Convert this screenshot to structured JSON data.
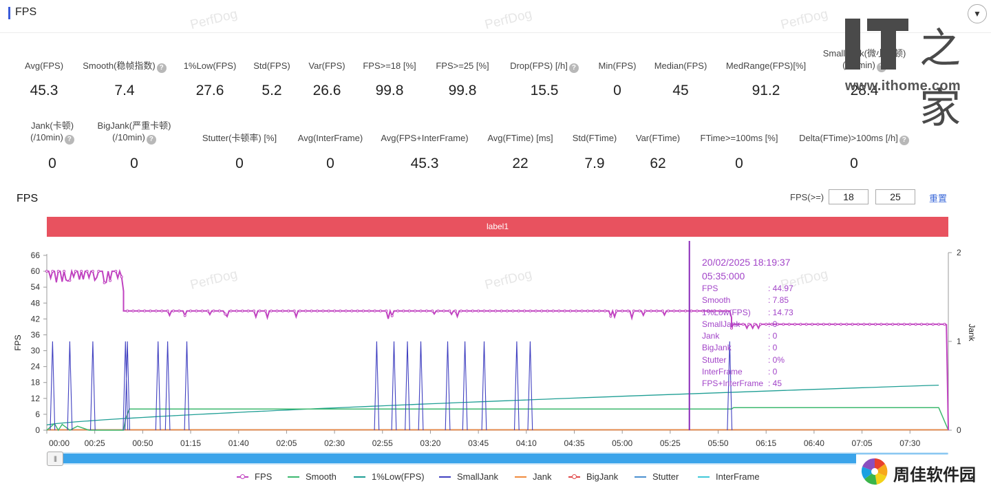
{
  "header": {
    "title": "FPS",
    "collapse_icon": "chevron-down-icon"
  },
  "watermark_text": "PerfDog",
  "metrics_row1": [
    {
      "label": "Avg(FPS)",
      "value": "45.3",
      "help": false
    },
    {
      "label": "Smooth(稳帧指数)",
      "value": "7.4",
      "help": true
    },
    {
      "label": "1%Low(FPS)",
      "value": "27.6",
      "help": false
    },
    {
      "label": "Std(FPS)",
      "value": "5.2",
      "help": false
    },
    {
      "label": "Var(FPS)",
      "value": "26.6",
      "help": false
    },
    {
      "label": "FPS>=18 [%]",
      "value": "99.8",
      "help": false
    },
    {
      "label": "FPS>=25 [%]",
      "value": "99.8",
      "help": false
    },
    {
      "label": "Drop(FPS) [/h]",
      "value": "15.5",
      "help": true
    },
    {
      "label": "Min(FPS)",
      "value": "0",
      "help": false
    },
    {
      "label": "Median(FPS)",
      "value": "45",
      "help": false
    },
    {
      "label": "MedRange(FPS)[%]",
      "value": "91.2",
      "help": false
    },
    {
      "label": "SmallJank(微小卡顿)",
      "label2": "(/10min)",
      "value": "28.4",
      "help": true
    }
  ],
  "metrics_row2": [
    {
      "label": "Jank(卡顿)",
      "label2": "(/10min)",
      "value": "0",
      "help": true
    },
    {
      "label": "BigJank(严重卡顿)",
      "label2": "(/10min)",
      "value": "0",
      "help": true
    },
    {
      "label": "Stutter(卡顿率) [%]",
      "value": "0",
      "help": false
    },
    {
      "label": "Avg(InterFrame)",
      "value": "0",
      "help": false
    },
    {
      "label": "Avg(FPS+InterFrame)",
      "value": "45.3",
      "help": false
    },
    {
      "label": "Avg(FTime) [ms]",
      "value": "22",
      "help": false
    },
    {
      "label": "Std(FTime)",
      "value": "7.9",
      "help": false
    },
    {
      "label": "Var(FTime)",
      "value": "62",
      "help": false
    },
    {
      "label": "FTime>=100ms [%]",
      "value": "0",
      "help": false
    },
    {
      "label": "Delta(FTime)>100ms [/h]",
      "value": "0",
      "help": true
    }
  ],
  "chart_header": {
    "title": "FPS",
    "filter_label": "FPS(>=)",
    "threshold1": "18",
    "threshold2": "25",
    "reset_label": "重置"
  },
  "label_band": "label1",
  "tooltip": {
    "date": "20/02/2025 18:19:37",
    "time": "05:35:000",
    "rows": [
      {
        "key": "FPS",
        "value": ": 44.97"
      },
      {
        "key": "Smooth",
        "value": ": 7.85"
      },
      {
        "key": "1%Low(FPS)",
        "value": ": 14.73"
      },
      {
        "key": "SmallJank",
        "value": ": 0"
      },
      {
        "key": "Jank",
        "value": ": 0"
      },
      {
        "key": "BigJank",
        "value": ": 0"
      },
      {
        "key": "Stutter",
        "value": ": 0%"
      },
      {
        "key": "InterFrame",
        "value": ": 0"
      },
      {
        "key": "FPS+InterFrame",
        "value": ": 45"
      }
    ]
  },
  "legend": [
    {
      "name": "FPS",
      "color": "#c042c0",
      "dot": true
    },
    {
      "name": "Smooth",
      "color": "#3cb86e",
      "dot": false
    },
    {
      "name": "1%Low(FPS)",
      "color": "#1e9e94",
      "dot": false
    },
    {
      "name": "SmallJank",
      "color": "#3f3fc0",
      "dot": false
    },
    {
      "name": "Jank",
      "color": "#f08a3c",
      "dot": false
    },
    {
      "name": "BigJank",
      "color": "#e04848",
      "dot": true
    },
    {
      "name": "Stutter",
      "color": "#4a90d0",
      "dot": false
    },
    {
      "name": "InterFrame",
      "color": "#3fc8d8",
      "dot": false
    }
  ],
  "logos": {
    "ithome_char": "之家",
    "ithome_url": "www.ithome.com",
    "zhoujia_text": "周佳软件园"
  },
  "chart_data": {
    "type": "line",
    "title": "FPS",
    "xlabel": "",
    "ylabel": "FPS",
    "y2label": "Jank",
    "x_unit": "seconds",
    "x_range": [
      0,
      470
    ],
    "ylim": [
      0,
      66
    ],
    "y_ticks": [
      0,
      6,
      12,
      18,
      24,
      30,
      36,
      42,
      48,
      54,
      60,
      66
    ],
    "y2lim": [
      0,
      2
    ],
    "y2_ticks": [
      0,
      1,
      2
    ],
    "x_ticks": [
      "00:00",
      "00:25",
      "00:50",
      "01:15",
      "01:40",
      "02:05",
      "02:30",
      "02:55",
      "03:20",
      "03:45",
      "04:10",
      "04:35",
      "05:00",
      "05:25",
      "05:50",
      "06:15",
      "06:40",
      "07:05",
      "07:30"
    ],
    "cursor_x": 335,
    "series": [
      {
        "name": "FPS",
        "color": "#c042c0",
        "segments": [
          [
            0,
            40,
            60
          ],
          [
            40,
            357,
            45
          ],
          [
            357,
            470,
            40
          ]
        ],
        "drop_at_end": true
      },
      {
        "name": "SmallJank",
        "color": "#3f3fc0",
        "axis": "right",
        "spikes": [
          3,
          12,
          24,
          41,
          42,
          58,
          63,
          73,
          172,
          181,
          188,
          195,
          209,
          218,
          228,
          245,
          252,
          356
        ]
      },
      {
        "name": "Smooth",
        "color": "#3cb86e",
        "baseline": 8
      },
      {
        "name": "1%Low(FPS)",
        "color": "#1e9e94",
        "rise_from": 2,
        "rise_to": 17
      },
      {
        "name": "Jank",
        "color": "#f08a3c",
        "value": 0
      },
      {
        "name": "BigJank",
        "color": "#e04848",
        "value": 0
      },
      {
        "name": "Stutter",
        "color": "#4a90d0",
        "value": 0
      },
      {
        "name": "InterFrame",
        "color": "#3fc8d8",
        "value": 0
      }
    ],
    "legend_position": "bottom"
  }
}
